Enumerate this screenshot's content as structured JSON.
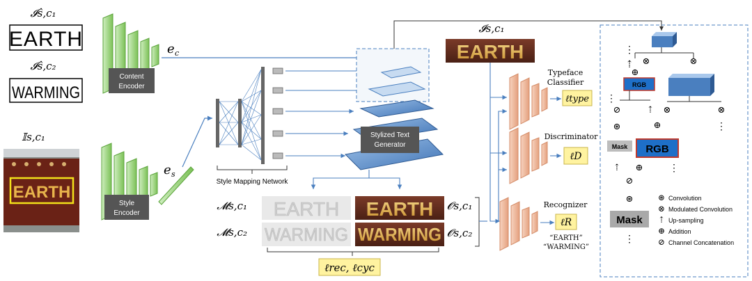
{
  "inputs": {
    "content1_label": "𝓘ŝ,c₁",
    "content1_text": "EARTH",
    "content2_label": "𝓘ŝ,c₂",
    "content2_text": "WARMING",
    "style_label": "𝕀s,c₁",
    "style_photo_text": "EARTH"
  },
  "encoders": {
    "content": {
      "line1": "Content",
      "line2": "Encoder",
      "output": "e",
      "output_sub": "c"
    },
    "style": {
      "line1": "Style",
      "line2": "Encoder",
      "output": "e",
      "output_sub": "s"
    }
  },
  "mapping": {
    "label": "Style Mapping Network"
  },
  "generator": {
    "line1": "Stylized Text",
    "line2": "Generator"
  },
  "target": {
    "label": "𝓘s,c₁",
    "text": "EARTH"
  },
  "outputs": {
    "mask1_label": "𝓜s,c₁",
    "mask2_label": "𝓜s,c₂",
    "out1_label": "𝓞s,c₁",
    "out2_label": "𝓞s,c₂",
    "word1": "EARTH",
    "word2": "WARMING",
    "loss": "ℓrec, ℓcyc"
  },
  "heads": {
    "typeface": {
      "line1": "Typeface",
      "line2": "Classifier",
      "loss": "ℓtype"
    },
    "discriminator": {
      "line1": "Discriminator",
      "loss": "ℓD"
    },
    "recognizer": {
      "line1": "Recognizer",
      "loss": "ℓR",
      "word1": "“EARTH”",
      "word2": "“WARMING”"
    }
  },
  "detail": {
    "rgb_small": "RGB",
    "rgb_large": "RGB",
    "mask_small": "Mask",
    "mask_large": "Mask",
    "legend": [
      {
        "symbol": "⊛",
        "label": "Convolution"
      },
      {
        "symbol": "⊗",
        "label": "Modulated Convolution"
      },
      {
        "symbol": "⇡",
        "label": "Up-sampling"
      },
      {
        "symbol": "⊕",
        "label": "Addition"
      },
      {
        "symbol": "⊘",
        "label": "Channel Concatenation"
      }
    ]
  },
  "colors": {
    "encoder_green": "#8fcf6a",
    "generator_blue": "#4a7fbf",
    "head_peach": "#f0b596",
    "loss_yellow": "#fff3a0",
    "rgb_blue": "#1e6fc8",
    "arrow": "#4a7fbf"
  }
}
